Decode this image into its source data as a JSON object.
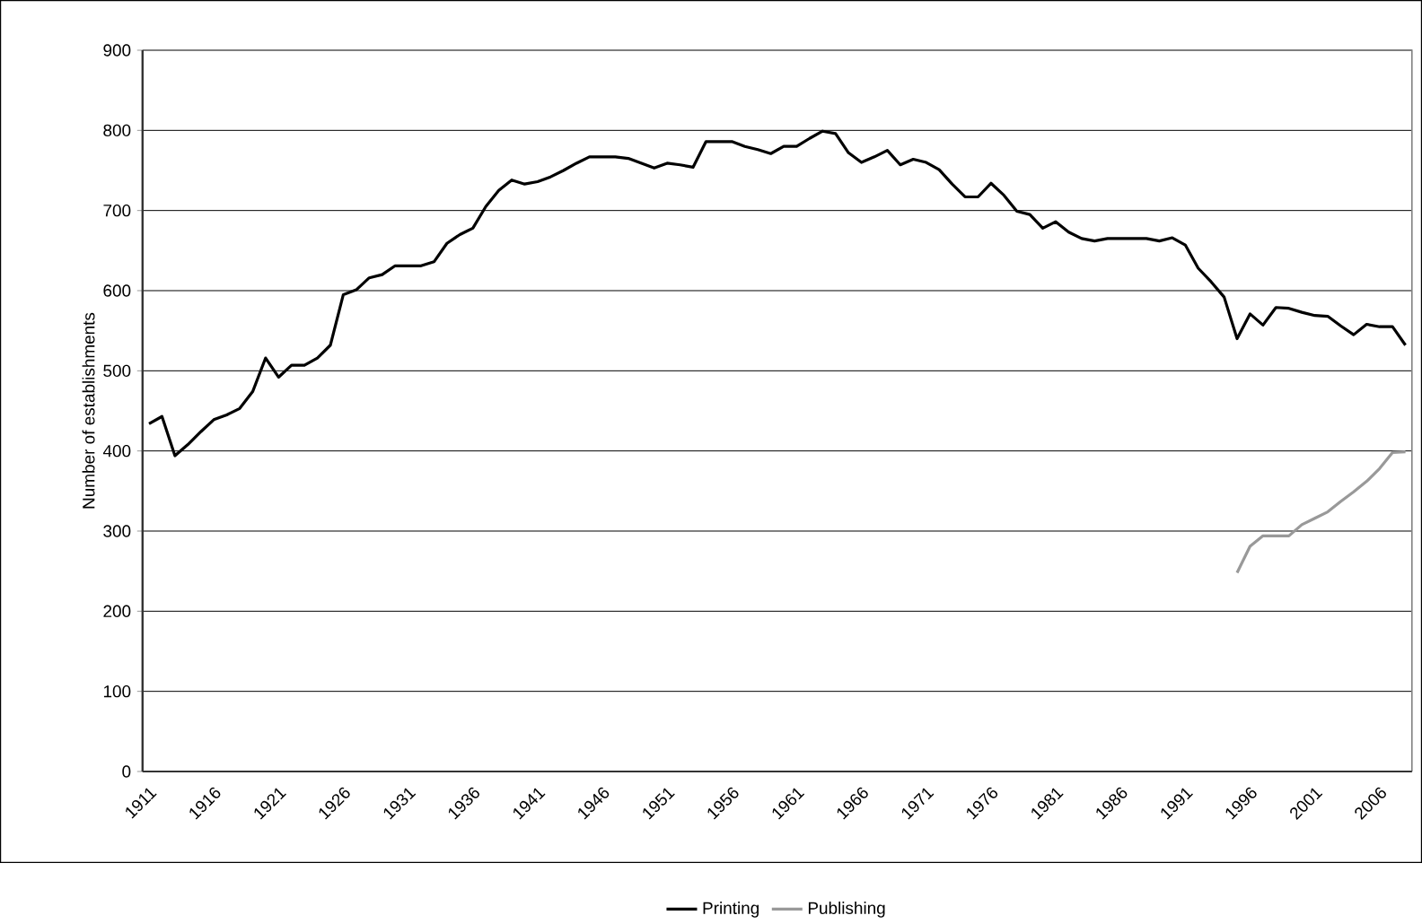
{
  "chart_data": {
    "type": "line",
    "ylabel": "Number of establishments",
    "categories": [
      "1911",
      null,
      null,
      null,
      null,
      "1916",
      null,
      null,
      null,
      null,
      "1921",
      null,
      null,
      null,
      null,
      "1926",
      null,
      null,
      null,
      null,
      "1931",
      null,
      null,
      null,
      null,
      "1936",
      null,
      null,
      null,
      null,
      "1941",
      null,
      null,
      null,
      null,
      "1946",
      null,
      null,
      null,
      null,
      "1951",
      null,
      null,
      null,
      null,
      "1956",
      null,
      null,
      null,
      null,
      "1961",
      null,
      null,
      null,
      null,
      "1966",
      null,
      null,
      null,
      null,
      "1971",
      null,
      null,
      null,
      null,
      "1976",
      null,
      null,
      null,
      null,
      "1981",
      null,
      null,
      null,
      null,
      "1986",
      null,
      null,
      null,
      null,
      "1991",
      null,
      null,
      null,
      null,
      "1996",
      null,
      null,
      null,
      null,
      "2001",
      null,
      null,
      null,
      null,
      "2006",
      null,
      null
    ],
    "series": [
      {
        "name": "Printing",
        "color": "#000000",
        "values": [
          434,
          443,
          394,
          408,
          424,
          439,
          445,
          453,
          474,
          516,
          492,
          507,
          507,
          516,
          532,
          595,
          601,
          616,
          620,
          631,
          631,
          631,
          636,
          659,
          670,
          678,
          705,
          725,
          738,
          733,
          736,
          742,
          750,
          759,
          767,
          767,
          767,
          765,
          759,
          753,
          759,
          757,
          754,
          786,
          786,
          786,
          780,
          776,
          771,
          780,
          780,
          790,
          799,
          796,
          772,
          760,
          767,
          775,
          757,
          764,
          760,
          751,
          733,
          717,
          717,
          734,
          719,
          699,
          695,
          678,
          686,
          673,
          665,
          662,
          665,
          665,
          665,
          665,
          662,
          666,
          657,
          628,
          611,
          592,
          540,
          571,
          557,
          579,
          578,
          573,
          569,
          568,
          556,
          545,
          558,
          555,
          555,
          532
        ]
      },
      {
        "name": "Publishing",
        "color": "#999999",
        "values": [
          null,
          null,
          null,
          null,
          null,
          null,
          null,
          null,
          null,
          null,
          null,
          null,
          null,
          null,
          null,
          null,
          null,
          null,
          null,
          null,
          null,
          null,
          null,
          null,
          null,
          null,
          null,
          null,
          null,
          null,
          null,
          null,
          null,
          null,
          null,
          null,
          null,
          null,
          null,
          null,
          null,
          null,
          null,
          null,
          null,
          null,
          null,
          null,
          null,
          null,
          null,
          null,
          null,
          null,
          null,
          null,
          null,
          null,
          null,
          null,
          null,
          null,
          null,
          null,
          null,
          null,
          null,
          null,
          null,
          null,
          null,
          null,
          null,
          null,
          null,
          null,
          null,
          null,
          null,
          null,
          null,
          null,
          null,
          null,
          248,
          281,
          294,
          294,
          294,
          308,
          316,
          324,
          337,
          349,
          362,
          378,
          398,
          399
        ]
      }
    ],
    "ylim": [
      0,
      900
    ],
    "yticks": [
      0,
      100,
      200,
      300,
      400,
      500,
      600,
      700,
      800,
      900
    ],
    "grid": "y",
    "legend": "bottom",
    "marker": "none",
    "line_style": "solid"
  }
}
